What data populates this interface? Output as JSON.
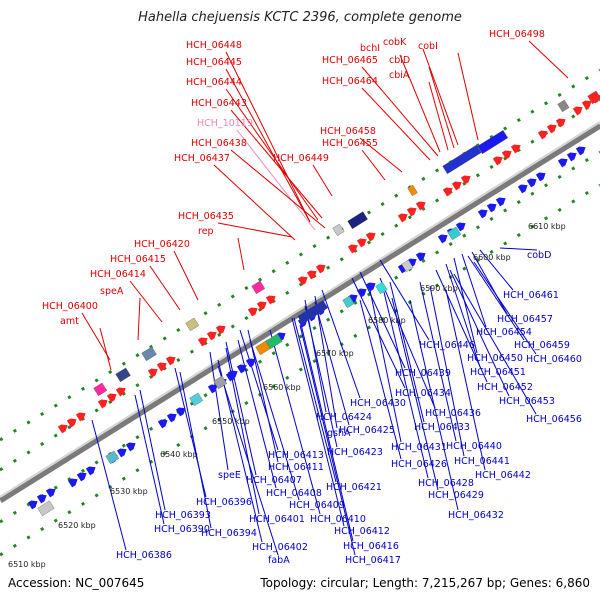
{
  "title": "Hahella chejuensis KCTC 2396, complete genome",
  "footer": {
    "accession": "Accession: NC_007645",
    "summary": "Topology: circular; Length: 7,215,267 bp; Genes: 6,860"
  },
  "colors": {
    "plus_label": "#e00000",
    "minus_label": "#0000cc",
    "pink_label": "#ee88bb",
    "backbone": "#888888",
    "tick": "#228822"
  },
  "scale_ticks": [
    "6510 kbp",
    "6520 kbp",
    "6530 kbp",
    "6540 kbp",
    "6550 kbp",
    "6560 kbp",
    "6570 kbp",
    "6580 kbp",
    "6590 kbp",
    "6600 kbp",
    "6610 kbp"
  ],
  "plus_labels": [
    "HCH_06448",
    "HCH_06445",
    "HCH_06444",
    "HCH_06443",
    "HCH_10119",
    "HCH_06438",
    "HCH_06437",
    "HCH_06435",
    "rep",
    "HCH_06420",
    "HCH_06415",
    "HCH_06414",
    "speA",
    "HCH_06400",
    "amt",
    "bchI",
    "HCH_06465",
    "HCH_06464",
    "cobK",
    "cbiD",
    "cbiA",
    "cobI",
    "HCH_06498",
    "HCH_06458",
    "HCH_06455",
    "HCH_06449"
  ],
  "minus_labels": [
    "cobD",
    "HCH_06461",
    "HCH_06457",
    "HCH_06454",
    "HCH_06459",
    "HCH_06446",
    "HCH_06450",
    "HCH_06460",
    "HCH_06439",
    "HCH_06451",
    "HCH_06434",
    "HCH_06452",
    "HCH_06436",
    "HCH_06453",
    "HCH_06430",
    "HCH_06433",
    "HCH_06456",
    "gshA",
    "HCH_06424",
    "HCH_06425",
    "HCH_06431",
    "HCH_06440",
    "HCH_06423",
    "HCH_06426",
    "HCH_06441",
    "HCH_06413",
    "HCH_06411",
    "HCH_06428",
    "HCH_06442",
    "speE",
    "HCH_06407",
    "HCH_06421",
    "HCH_06429",
    "HCH_06396",
    "HCH_06408",
    "HCH_06409",
    "HCH_06432",
    "HCH_06393",
    "HCH_06401",
    "HCH_06410",
    "HCH_06390",
    "HCH_06394",
    "HCH_06412",
    "HCH_06402",
    "HCH_06416",
    "HCH_06386",
    "fabA",
    "HCH_06417"
  ]
}
